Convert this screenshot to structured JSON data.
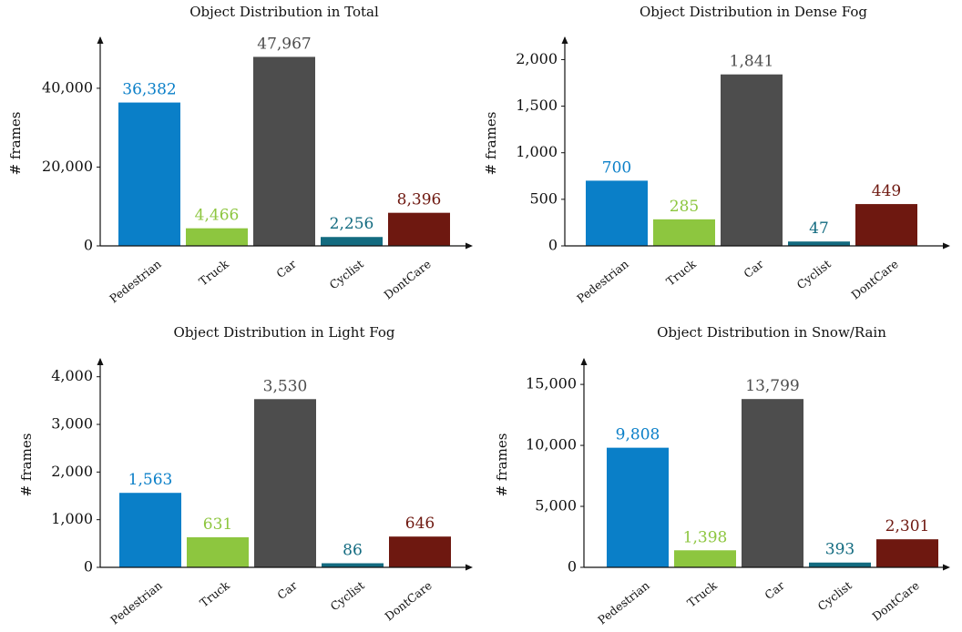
{
  "colors": {
    "Pedestrian": "#0a7fc8",
    "Truck": "#8dc63f",
    "Car": "#4d4d4d",
    "Cyclist": "#136b80",
    "DontCare": "#6e1810"
  },
  "chart_data": [
    {
      "type": "bar",
      "title": "Object Distribution in Total",
      "ylabel": "# frames",
      "xlabel": "",
      "categories": [
        "Pedestrian",
        "Truck",
        "Car",
        "Cyclist",
        "DontCare"
      ],
      "values": [
        36382,
        4466,
        47967,
        2256,
        8396
      ],
      "value_labels": [
        "36,382",
        "4,466",
        "47,967",
        "2,256",
        "8,396"
      ],
      "ylim": [
        0,
        52000
      ],
      "yticks": [
        0,
        20000,
        40000
      ],
      "ytick_labels": [
        "0",
        "20,000",
        "40,000"
      ]
    },
    {
      "type": "bar",
      "title": "Object Distribution in Dense Fog",
      "ylabel": "# frames",
      "xlabel": "",
      "categories": [
        "Pedestrian",
        "Truck",
        "Car",
        "Cyclist",
        "DontCare"
      ],
      "values": [
        700,
        285,
        1841,
        47,
        449
      ],
      "value_labels": [
        "700",
        "285",
        "1,841",
        "47",
        "449"
      ],
      "ylim": [
        0,
        2200
      ],
      "yticks": [
        0,
        500,
        1000,
        1500,
        2000
      ],
      "ytick_labels": [
        "0",
        "500",
        "1,000",
        "1,500",
        "2,000"
      ]
    },
    {
      "type": "bar",
      "title": "Object Distribution in Light Fog",
      "ylabel": "# frames",
      "xlabel": "",
      "categories": [
        "Pedestrian",
        "Truck",
        "Car",
        "Cyclist",
        "DontCare"
      ],
      "values": [
        1563,
        631,
        3530,
        86,
        646
      ],
      "value_labels": [
        "1,563",
        "631",
        "3,530",
        "86",
        "646"
      ],
      "ylim": [
        0,
        4300
      ],
      "yticks": [
        0,
        1000,
        2000,
        3000,
        4000
      ],
      "ytick_labels": [
        "0",
        "1,000",
        "2,000",
        "3,000",
        "4,000"
      ]
    },
    {
      "type": "bar",
      "title": "Object Distribution in Snow/Rain",
      "ylabel": "# frames",
      "xlabel": "",
      "categories": [
        "Pedestrian",
        "Truck",
        "Car",
        "Cyclist",
        "DontCare"
      ],
      "values": [
        9808,
        1398,
        13799,
        393,
        2301
      ],
      "value_labels": [
        "9,808",
        "1,398",
        "13,799",
        "393",
        "2,301"
      ],
      "ylim": [
        0,
        16800
      ],
      "yticks": [
        0,
        5000,
        10000,
        15000
      ],
      "ytick_labels": [
        "0",
        "5,000",
        "10,000",
        "15,000"
      ]
    }
  ]
}
